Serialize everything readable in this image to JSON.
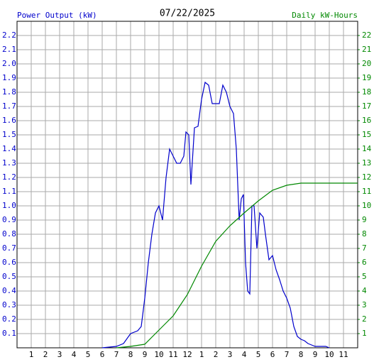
{
  "chart_data": {
    "type": "line",
    "title": "07/22/2025",
    "xlim": [
      0,
      24
    ],
    "xticks": [
      1,
      2,
      3,
      4,
      5,
      6,
      7,
      8,
      9,
      10,
      11,
      12,
      {
        "value": 13,
        "label": "1"
      },
      {
        "value": 14,
        "label": "2"
      },
      {
        "value": 15,
        "label": "3"
      },
      {
        "value": 16,
        "label": "4"
      },
      {
        "value": 17,
        "label": "5"
      },
      {
        "value": 18,
        "label": "6"
      },
      {
        "value": 19,
        "label": "7"
      },
      {
        "value": 20,
        "label": "8"
      },
      {
        "value": 21,
        "label": "9"
      },
      {
        "value": 22,
        "label": "10"
      },
      {
        "value": 23,
        "label": "11"
      }
    ],
    "ylim": [
      0,
      2.3
    ],
    "yticks": [
      0.1,
      0.2,
      0.3,
      0.4,
      0.5,
      0.6,
      0.7,
      0.8,
      0.9,
      {
        "value": 1,
        "label": "1.0"
      },
      1.1,
      1.2,
      1.3,
      1.4,
      1.5,
      1.6,
      1.7,
      1.8,
      1.9,
      {
        "value": 2,
        "label": "2.0"
      },
      2.1,
      2.2
    ],
    "y2lim": [
      0,
      23
    ],
    "y2ticks": [
      1,
      2,
      3,
      4,
      5,
      6,
      7,
      8,
      9,
      10,
      11,
      12,
      13,
      14,
      15,
      16,
      17,
      18,
      19,
      20,
      21,
      22
    ],
    "grid": true,
    "series": [
      {
        "name": "Power Output (kW)",
        "color": "#0000cc",
        "x": [
          6,
          7,
          7.5,
          8,
          8.5,
          8.75,
          9,
          9.25,
          9.5,
          9.75,
          10,
          10.25,
          10.5,
          10.75,
          11,
          11.25,
          11.5,
          11.75,
          11.9,
          12.1,
          12.25,
          12.5,
          12.75,
          13,
          13.25,
          13.5,
          13.75,
          14,
          14.25,
          14.5,
          14.75,
          15,
          15.25,
          15.45,
          15.65,
          15.8,
          15.95,
          16.1,
          16.25,
          16.4,
          16.55,
          16.7,
          16.9,
          17.1,
          17.35,
          17.5,
          17.75,
          18,
          18.25,
          18.5,
          18.75,
          19,
          19.25,
          19.5,
          19.75,
          20,
          20.25,
          20.5,
          20.75,
          21,
          21.75,
          22
        ],
        "values": [
          0,
          0.01,
          0.03,
          0.1,
          0.12,
          0.15,
          0.35,
          0.6,
          0.8,
          0.95,
          1.0,
          0.9,
          1.2,
          1.4,
          1.35,
          1.3,
          1.3,
          1.35,
          1.52,
          1.5,
          1.15,
          1.55,
          1.56,
          1.75,
          1.87,
          1.85,
          1.72,
          1.72,
          1.72,
          1.85,
          1.8,
          1.7,
          1.65,
          1.4,
          0.9,
          1.05,
          1.08,
          0.6,
          0.4,
          0.38,
          1.0,
          1.0,
          0.7,
          0.95,
          0.92,
          0.8,
          0.62,
          0.65,
          0.55,
          0.48,
          0.4,
          0.35,
          0.28,
          0.15,
          0.08,
          0.06,
          0.05,
          0.03,
          0.02,
          0.01,
          0.01,
          0
        ]
      },
      {
        "name": "Daily kW-Hours",
        "color": "#008800",
        "axis": "y2",
        "x": [
          7,
          8,
          9,
          10,
          11,
          12,
          13,
          14,
          15,
          16,
          17,
          18,
          19,
          20,
          24
        ],
        "values": [
          0,
          0.1,
          0.25,
          1.25,
          2.25,
          3.75,
          5.75,
          7.5,
          8.6,
          9.5,
          10.35,
          11.1,
          11.45,
          11.6,
          11.6
        ]
      }
    ]
  }
}
